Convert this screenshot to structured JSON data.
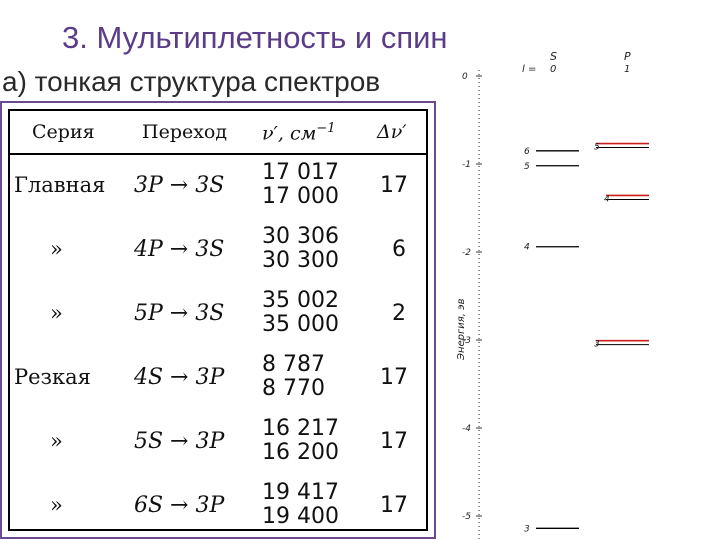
{
  "title": "3. Мультиплетность и спин",
  "subtitle": "а) тонкая структура спектров",
  "table": {
    "headers": {
      "series": "Серия",
      "transition": "Переход",
      "frequency": "ν′, см",
      "frequency_exp": "−1",
      "delta": "Δν′"
    },
    "rows": [
      {
        "series": "Главная",
        "transition": "3P → 3S",
        "freq1": "17 017",
        "freq2": "17 000",
        "delta": "17"
      },
      {
        "series": "»",
        "transition": "4P → 3S",
        "freq1": "30 306",
        "freq2": "30 300",
        "delta": "6"
      },
      {
        "series": "»",
        "transition": "5P → 3S",
        "freq1": "35 002",
        "freq2": "35 000",
        "delta": "2"
      },
      {
        "series": "Резкая",
        "transition": "4S → 3P",
        "freq1": "8 787",
        "freq2": "8 770",
        "delta": "17"
      },
      {
        "series": "»",
        "transition": "5S → 3P",
        "freq1": "16 217",
        "freq2": "16 200",
        "delta": "17"
      },
      {
        "series": "»",
        "transition": "6S → 3P",
        "freq1": "19 417",
        "freq2": "19 400",
        "delta": "17"
      }
    ]
  },
  "diagram": {
    "axis_label": "Энергия, эв",
    "ticks": [
      "0",
      "-1",
      "-2",
      "-3",
      "-4",
      "-5"
    ],
    "header_l": "l =",
    "col_s_name": "S",
    "col_s_l": "0",
    "col_p_name": "P",
    "col_p_l": "1",
    "s_levels": [
      {
        "label": "6",
        "energy": -0.85
      },
      {
        "label": "5",
        "energy": -1.02
      },
      {
        "label": "4",
        "energy": -1.94
      },
      {
        "label": "3",
        "energy": -5.14
      }
    ],
    "p_levels": [
      {
        "label": "5",
        "energy": -0.79
      },
      {
        "label": "4",
        "energy": -1.38
      },
      {
        "label": "3",
        "energy": -3.03
      }
    ],
    "colors": {
      "level": "#000000",
      "highlight": "#cc1e1e",
      "frame": "#6b4a8e",
      "title": "#5b3c88"
    }
  }
}
